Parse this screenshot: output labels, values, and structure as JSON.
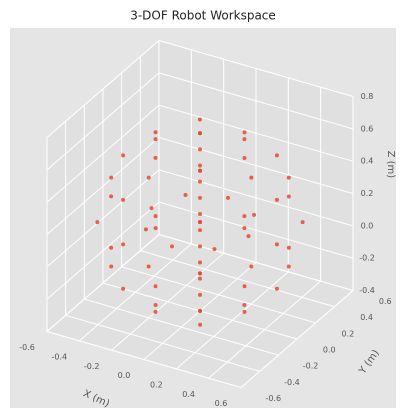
{
  "chart_data": {
    "type": "scatter",
    "title": "3-DOF Robot Workspace",
    "xlabel": "X (m)",
    "ylabel": "Y (m)",
    "zlabel": "Z (m)",
    "color": "#e24a33",
    "x": [
      0.55,
      0.476,
      0.275,
      0,
      -0.275,
      -0.476,
      -0.55,
      -0.476,
      -0.275,
      0,
      0.275,
      0.476,
      0.476,
      0.412,
      0.238,
      0,
      -0.238,
      -0.412,
      -0.476,
      -0.412,
      -0.238,
      0,
      0.238,
      0.412,
      0.476,
      0.412,
      0.238,
      0,
      -0.238,
      -0.412,
      -0.476,
      -0.412,
      -0.238,
      0,
      0.238,
      0.412,
      0.275,
      0.138,
      -0.138,
      -0.275,
      -0.138,
      0.138,
      0.275,
      0.138,
      -0.138,
      -0.275,
      -0.138,
      0.138,
      0,
      0,
      0,
      0,
      0,
      0,
      0,
      0,
      0,
      0,
      0,
      0,
      0.3,
      0.212,
      0,
      -0.212,
      -0.3,
      -0.212,
      0,
      0.212
    ],
    "y": [
      0,
      0.275,
      0.476,
      0.55,
      0.476,
      0.275,
      0,
      -0.275,
      -0.476,
      -0.55,
      -0.476,
      -0.275,
      0,
      0.238,
      0.412,
      0.476,
      0.412,
      0.238,
      0,
      -0.238,
      -0.412,
      -0.476,
      -0.412,
      -0.238,
      0,
      0.238,
      0.412,
      0.476,
      0.412,
      0.238,
      0,
      -0.238,
      -0.412,
      -0.476,
      -0.412,
      -0.238,
      0,
      0.238,
      0.238,
      0,
      -0.238,
      -0.238,
      0,
      0.238,
      0.238,
      0,
      -0.238,
      -0.238,
      0,
      0,
      0,
      0,
      0,
      0,
      0,
      0,
      0,
      0,
      0,
      0,
      0,
      0.212,
      0.3,
      0.212,
      0,
      -0.212,
      -0.3,
      -0.212
    ],
    "z": [
      0.15,
      0.15,
      0.15,
      0.15,
      0.15,
      0.15,
      0.15,
      0.15,
      0.15,
      0.15,
      0.15,
      0.15,
      0.425,
      0.425,
      0.425,
      0.425,
      0.425,
      0.425,
      0.425,
      0.425,
      0.425,
      0.425,
      0.425,
      0.425,
      -0.125,
      -0.125,
      -0.125,
      -0.125,
      -0.125,
      -0.125,
      -0.125,
      -0.125,
      -0.125,
      -0.125,
      -0.125,
      -0.125,
      0.626,
      0.626,
      0.626,
      0.626,
      0.626,
      0.626,
      -0.326,
      -0.326,
      -0.326,
      -0.326,
      -0.326,
      -0.326,
      -0.4,
      -0.3,
      -0.2,
      -0.1,
      0,
      0.1,
      0.2,
      0.3,
      0.4,
      0.5,
      0.6,
      0.7,
      0.15,
      0.15,
      0.15,
      0.15,
      0.15,
      0.15,
      0.15,
      0.15
    ],
    "xlim": [
      -0.6,
      0.6
    ],
    "ylim": [
      -0.6,
      0.6
    ],
    "zlim": [
      -0.4,
      0.8
    ],
    "xticks": [
      -0.6,
      -0.4,
      -0.2,
      {
        "value": 0,
        "label": "0.0"
      },
      0.2,
      0.4,
      0.6
    ],
    "yticks": [
      -0.6,
      -0.4,
      -0.2,
      {
        "value": 0,
        "label": "0.0"
      },
      0.2,
      0.4,
      0.6
    ],
    "zticks": [
      -0.4,
      -0.2,
      {
        "value": 0,
        "label": "0.0"
      },
      0.2,
      0.4,
      0.6,
      0.8
    ],
    "grid": true
  }
}
